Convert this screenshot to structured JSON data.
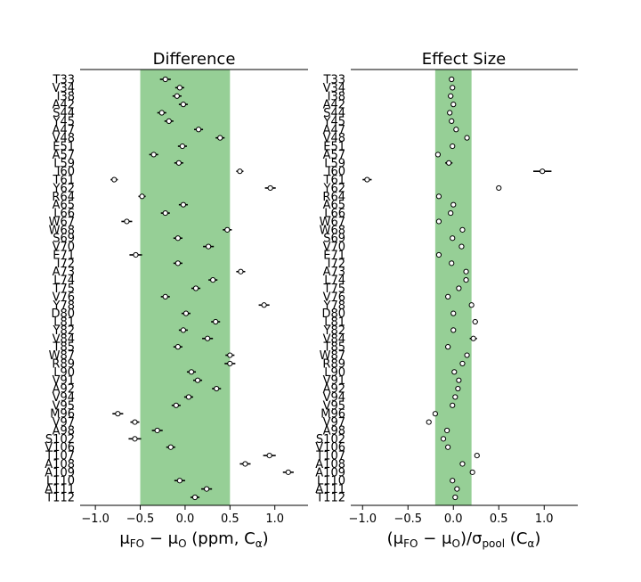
{
  "chart_data": [
    {
      "type": "forest",
      "title": "Difference",
      "xlabel": "μFO − μO (ppm, Cα)",
      "xlim": [
        -1.17,
        1.37
      ],
      "xticks": [
        -1.0,
        -0.5,
        0.0,
        0.5,
        1.0
      ],
      "xtick_labels": [
        "−1.0",
        "−0.5",
        "0.0",
        "0.5",
        "1.0"
      ],
      "band": [
        -0.5,
        0.5
      ],
      "band_color": "#96cf96",
      "residues": [
        "T33",
        "V34",
        "I38",
        "A42",
        "S44",
        "Y45",
        "A47",
        "V48",
        "E51",
        "A57",
        "L59",
        "I60",
        "T61",
        "Y62",
        "R64",
        "A65",
        "L66",
        "W67",
        "W68",
        "S69",
        "V70",
        "E71",
        "I72",
        "A73",
        "L74",
        "T75",
        "V76",
        "Y78",
        "D80",
        "L81",
        "Y82",
        "V84",
        "T85",
        "W87",
        "R89",
        "L90",
        "V91",
        "A92",
        "V94",
        "V95",
        "M96",
        "V97",
        "A98",
        "S102",
        "V106",
        "T107",
        "A108",
        "A109",
        "L110",
        "A111",
        "T112"
      ],
      "values": [
        -0.22,
        -0.06,
        -0.09,
        -0.02,
        -0.26,
        -0.18,
        0.15,
        0.39,
        -0.03,
        -0.35,
        -0.07,
        0.61,
        -0.79,
        0.95,
        -0.48,
        -0.02,
        -0.22,
        -0.65,
        0.47,
        -0.08,
        0.26,
        -0.55,
        -0.08,
        0.62,
        0.31,
        0.12,
        -0.22,
        0.88,
        0.01,
        0.34,
        -0.02,
        0.25,
        -0.08,
        0.5,
        0.5,
        0.07,
        0.14,
        0.35,
        0.04,
        -0.1,
        -0.75,
        -0.56,
        -0.31,
        -0.56,
        -0.16,
        0.94,
        0.67,
        1.15,
        -0.06,
        0.24,
        0.11
      ],
      "errors": [
        0.06,
        0.05,
        0.05,
        0.05,
        0.05,
        0.05,
        0.05,
        0.05,
        0.05,
        0.05,
        0.05,
        0.04,
        0.04,
        0.06,
        0.04,
        0.05,
        0.05,
        0.06,
        0.05,
        0.05,
        0.06,
        0.07,
        0.05,
        0.05,
        0.05,
        0.05,
        0.05,
        0.06,
        0.05,
        0.05,
        0.05,
        0.06,
        0.05,
        0.05,
        0.06,
        0.05,
        0.05,
        0.05,
        0.05,
        0.05,
        0.06,
        0.05,
        0.06,
        0.07,
        0.05,
        0.07,
        0.06,
        0.06,
        0.06,
        0.06,
        0.05
      ]
    },
    {
      "type": "forest",
      "title": "Effect Size",
      "xlabel": "(μFO − μO)/σpool  (Cα)",
      "xlim": [
        -1.13,
        1.37
      ],
      "xticks": [
        -1.0,
        -0.5,
        0.0,
        0.5,
        1.0
      ],
      "xtick_labels": [
        "−1.0",
        "−0.5",
        "0.0",
        "0.5",
        "1.0"
      ],
      "band": [
        -0.2,
        0.2
      ],
      "band_color": "#96cf96",
      "residues": [
        "T33",
        "V34",
        "I38",
        "A42",
        "S44",
        "Y45",
        "A47",
        "V48",
        "E51",
        "A57",
        "L59",
        "I60",
        "T61",
        "Y62",
        "R64",
        "A65",
        "L66",
        "W67",
        "W68",
        "S69",
        "V70",
        "E71",
        "I72",
        "A73",
        "L74",
        "T75",
        "V76",
        "Y78",
        "D80",
        "L81",
        "Y82",
        "V84",
        "T85",
        "W87",
        "R89",
        "L90",
        "V91",
        "A92",
        "V94",
        "V95",
        "M96",
        "V97",
        "A98",
        "S102",
        "V106",
        "T107",
        "A108",
        "A109",
        "L110",
        "A111",
        "T112"
      ],
      "values": [
        -0.02,
        -0.01,
        -0.03,
        0.0,
        -0.04,
        -0.02,
        0.03,
        0.15,
        -0.01,
        -0.17,
        -0.05,
        0.98,
        -0.95,
        0.5,
        -0.16,
        0.0,
        -0.03,
        -0.16,
        0.1,
        -0.01,
        0.09,
        -0.16,
        -0.02,
        0.14,
        0.14,
        0.06,
        -0.06,
        0.2,
        0.0,
        0.24,
        0.0,
        0.22,
        -0.06,
        0.15,
        0.1,
        0.01,
        0.06,
        0.05,
        0.02,
        -0.01,
        -0.2,
        -0.27,
        -0.07,
        -0.11,
        -0.06,
        0.26,
        0.1,
        0.21,
        -0.01,
        0.04,
        0.02
      ],
      "errors": [
        0.01,
        0.01,
        0.03,
        0.01,
        0.01,
        0.01,
        0.01,
        0.01,
        0.01,
        0.01,
        0.04,
        0.1,
        0.05,
        0.02,
        0.01,
        0.01,
        0.01,
        0.01,
        0.01,
        0.01,
        0.01,
        0.01,
        0.01,
        0.01,
        0.01,
        0.02,
        0.01,
        0.01,
        0.01,
        0.03,
        0.01,
        0.04,
        0.03,
        0.01,
        0.01,
        0.01,
        0.01,
        0.01,
        0.01,
        0.01,
        0.01,
        0.02,
        0.01,
        0.01,
        0.01,
        0.01,
        0.01,
        0.01,
        0.01,
        0.01,
        0.01
      ]
    }
  ]
}
